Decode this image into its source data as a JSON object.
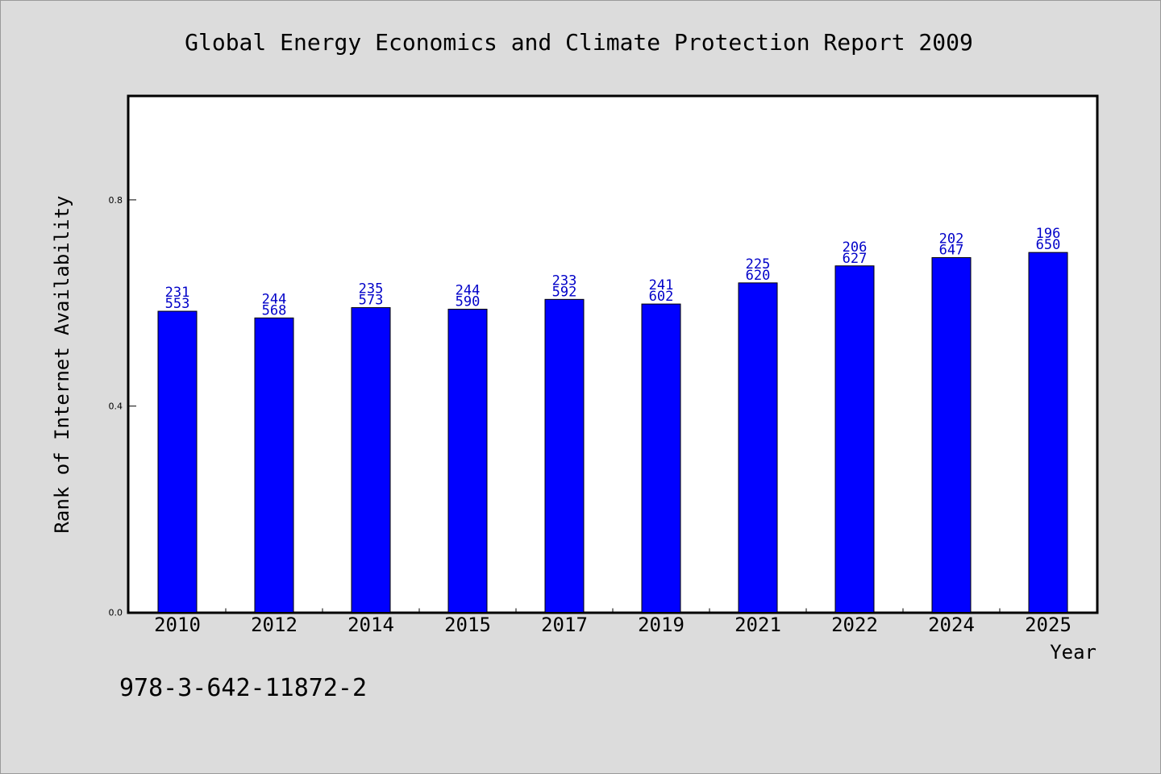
{
  "chart_data": {
    "type": "bar",
    "title": "Global Energy Economics and Climate Protection Report 2009",
    "xlabel": "Year",
    "ylabel": "Rank of Internet Availability",
    "categories": [
      "2010",
      "2012",
      "2014",
      "2015",
      "2017",
      "2019",
      "2021",
      "2022",
      "2024",
      "2025"
    ],
    "values": [
      0.584,
      0.571,
      0.591,
      0.588,
      0.607,
      0.598,
      0.639,
      0.672,
      0.688,
      0.698
    ],
    "series": [
      {
        "name": "",
        "values": [
          0.584,
          0.571,
          0.591,
          0.588,
          0.607,
          0.598,
          0.639,
          0.672,
          0.688,
          0.698
        ]
      }
    ],
    "data_labels_top": [
      "231",
      "244",
      "235",
      "244",
      "233",
      "241",
      "225",
      "206",
      "202",
      "196"
    ],
    "data_labels_bottom": [
      "553",
      "568",
      "573",
      "590",
      "592",
      "602",
      "620",
      "627",
      "647",
      "650"
    ],
    "y_ticks": [
      "0.0",
      "0.4",
      "0.8"
    ],
    "ylim": [
      0,
      1.0
    ],
    "grid": false,
    "legend": "none",
    "bar_color": "#0000ff"
  },
  "footer": {
    "isbn": "978-3-642-11872-2"
  }
}
